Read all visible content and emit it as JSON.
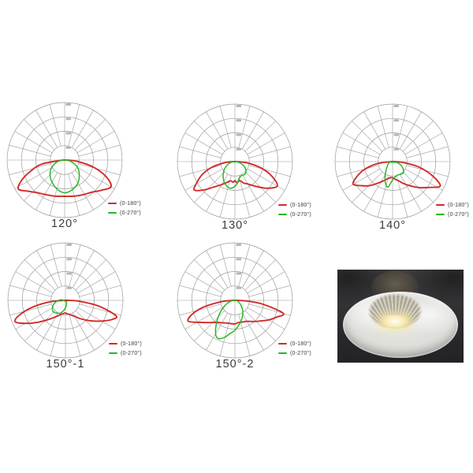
{
  "style": {
    "background": "#ffffff",
    "grid_color": "#9b9b9b",
    "tick_smudge_color": "#aeaeae",
    "title_color": "#3c3c3c",
    "red": "#d22b2b",
    "green": "#27b827"
  },
  "notes": {
    "radial_tick_labels": "tiny illegible numeric smudges beside the vertical axis at each ring"
  },
  "chart_data": [
    {
      "type": "line",
      "subtype": "polar-photometric",
      "title": "120°",
      "legend_position": "bottom-right",
      "rings": [
        0.25,
        0.5,
        0.75,
        1.0
      ],
      "spoke_step_deg": 15,
      "angle_convention": "degrees from nadir (straight down); negative = left",
      "series": [
        {
          "name": "(0-180°)",
          "color": "#d22b2b",
          "points": [
            [
              -90,
              0.03
            ],
            [
              -80,
              0.4
            ],
            [
              -72,
              0.62
            ],
            [
              -65,
              0.82
            ],
            [
              -58,
              0.95
            ],
            [
              -50,
              0.84
            ],
            [
              -40,
              0.74
            ],
            [
              -30,
              0.69
            ],
            [
              -20,
              0.66
            ],
            [
              -10,
              0.64
            ],
            [
              0,
              0.63
            ],
            [
              10,
              0.64
            ],
            [
              20,
              0.66
            ],
            [
              30,
              0.69
            ],
            [
              40,
              0.73
            ],
            [
              50,
              0.82
            ],
            [
              60,
              0.93
            ],
            [
              68,
              0.78
            ],
            [
              76,
              0.52
            ],
            [
              84,
              0.22
            ],
            [
              90,
              0.03
            ]
          ]
        },
        {
          "name": "(0-270°)",
          "color": "#27b827",
          "points": [
            [
              -90,
              0.04
            ],
            [
              -75,
              0.14
            ],
            [
              -60,
              0.26
            ],
            [
              -45,
              0.36
            ],
            [
              -30,
              0.44
            ],
            [
              -15,
              0.52
            ],
            [
              0,
              0.57
            ],
            [
              15,
              0.53
            ],
            [
              30,
              0.46
            ],
            [
              45,
              0.36
            ],
            [
              60,
              0.26
            ],
            [
              75,
              0.13
            ],
            [
              88,
              0.04
            ]
          ]
        }
      ]
    },
    {
      "type": "line",
      "subtype": "polar-photometric",
      "title": "130°",
      "legend_position": "bottom-right",
      "rings": [
        0.25,
        0.5,
        0.75,
        1.0
      ],
      "spoke_step_deg": 15,
      "angle_convention": "degrees from nadir (straight down); negative = left",
      "series": [
        {
          "name": "(0-180°)",
          "color": "#d22b2b",
          "points": [
            [
              -90,
              0.03
            ],
            [
              -84,
              0.18
            ],
            [
              -76,
              0.42
            ],
            [
              -68,
              0.62
            ],
            [
              -60,
              0.78
            ],
            [
              -55,
              0.86
            ],
            [
              -48,
              0.74
            ],
            [
              -40,
              0.58
            ],
            [
              -30,
              0.46
            ],
            [
              -20,
              0.38
            ],
            [
              -12,
              0.34
            ],
            [
              -5,
              0.36
            ],
            [
              0,
              0.33
            ],
            [
              6,
              0.37
            ],
            [
              14,
              0.34
            ],
            [
              22,
              0.4
            ],
            [
              30,
              0.45
            ],
            [
              40,
              0.56
            ],
            [
              50,
              0.72
            ],
            [
              60,
              0.85
            ],
            [
              68,
              0.7
            ],
            [
              76,
              0.48
            ],
            [
              84,
              0.22
            ],
            [
              90,
              0.03
            ]
          ]
        },
        {
          "name": "(0-270°)",
          "color": "#27b827",
          "points": [
            [
              -85,
              0.05
            ],
            [
              -70,
              0.12
            ],
            [
              -55,
              0.22
            ],
            [
              -40,
              0.32
            ],
            [
              -28,
              0.4
            ],
            [
              -18,
              0.45
            ],
            [
              -10,
              0.47
            ],
            [
              -2,
              0.44
            ],
            [
              6,
              0.38
            ],
            [
              14,
              0.3
            ],
            [
              24,
              0.27
            ],
            [
              36,
              0.28
            ],
            [
              48,
              0.26
            ],
            [
              60,
              0.2
            ],
            [
              72,
              0.12
            ],
            [
              84,
              0.05
            ]
          ]
        }
      ]
    },
    {
      "type": "line",
      "subtype": "polar-photometric",
      "title": "140°",
      "legend_position": "bottom-right",
      "rings": [
        0.25,
        0.5,
        0.75,
        1.0
      ],
      "spoke_step_deg": 15,
      "angle_convention": "degrees from nadir (straight down); negative = left",
      "series": [
        {
          "name": "(0-180°)",
          "color": "#d22b2b",
          "points": [
            [
              -90,
              0.03
            ],
            [
              -82,
              0.28
            ],
            [
              -74,
              0.52
            ],
            [
              -66,
              0.7
            ],
            [
              -60,
              0.79
            ],
            [
              -52,
              0.68
            ],
            [
              -44,
              0.58
            ],
            [
              -34,
              0.45
            ],
            [
              -24,
              0.36
            ],
            [
              -14,
              0.3
            ],
            [
              -6,
              0.28
            ],
            [
              0,
              0.28
            ],
            [
              8,
              0.31
            ],
            [
              16,
              0.34
            ],
            [
              26,
              0.42
            ],
            [
              36,
              0.52
            ],
            [
              46,
              0.65
            ],
            [
              56,
              0.8
            ],
            [
              63,
              0.93
            ],
            [
              70,
              0.75
            ],
            [
              78,
              0.48
            ],
            [
              85,
              0.2
            ],
            [
              90,
              0.03
            ]
          ]
        },
        {
          "name": "(0-270°)",
          "color": "#27b827",
          "points": [
            [
              -80,
              0.05
            ],
            [
              -65,
              0.08
            ],
            [
              -50,
              0.12
            ],
            [
              -38,
              0.18
            ],
            [
              -26,
              0.3
            ],
            [
              -16,
              0.42
            ],
            [
              -10,
              0.45
            ],
            [
              -4,
              0.36
            ],
            [
              2,
              0.3
            ],
            [
              10,
              0.27
            ],
            [
              20,
              0.25
            ],
            [
              32,
              0.26
            ],
            [
              44,
              0.27
            ],
            [
              56,
              0.22
            ],
            [
              68,
              0.15
            ],
            [
              80,
              0.07
            ]
          ]
        }
      ]
    },
    {
      "type": "line",
      "subtype": "polar-photometric",
      "title": "150°-1",
      "legend_position": "bottom-right",
      "rings": [
        0.25,
        0.5,
        0.75,
        1.0
      ],
      "spoke_step_deg": 15,
      "angle_convention": "degrees from nadir (straight down); negative = left",
      "series": [
        {
          "name": "(0-180°)",
          "color": "#d22b2b",
          "points": [
            [
              -90,
              0.04
            ],
            [
              -84,
              0.3
            ],
            [
              -78,
              0.6
            ],
            [
              -72,
              0.85
            ],
            [
              -67,
              0.95
            ],
            [
              -60,
              0.8
            ],
            [
              -52,
              0.62
            ],
            [
              -44,
              0.48
            ],
            [
              -36,
              0.38
            ],
            [
              -26,
              0.3
            ],
            [
              -16,
              0.25
            ],
            [
              -8,
              0.23
            ],
            [
              0,
              0.22
            ],
            [
              10,
              0.24
            ],
            [
              20,
              0.27
            ],
            [
              30,
              0.32
            ],
            [
              40,
              0.42
            ],
            [
              50,
              0.55
            ],
            [
              60,
              0.72
            ],
            [
              68,
              0.88
            ],
            [
              73,
              0.92
            ],
            [
              80,
              0.6
            ],
            [
              86,
              0.25
            ],
            [
              90,
              0.04
            ]
          ]
        },
        {
          "name": "(0-270°)",
          "color": "#27b827",
          "points": [
            [
              -100,
              0.07
            ],
            [
              -88,
              0.13
            ],
            [
              -75,
              0.2
            ],
            [
              -60,
              0.26
            ],
            [
              -48,
              0.29
            ],
            [
              -35,
              0.27
            ],
            [
              -22,
              0.24
            ],
            [
              -10,
              0.18
            ],
            [
              0,
              0.13
            ],
            [
              12,
              0.08
            ],
            [
              25,
              0.05
            ],
            [
              40,
              0.03
            ]
          ]
        }
      ]
    },
    {
      "type": "line",
      "subtype": "polar-photometric",
      "title": "150°-2",
      "legend_position": "bottom-right",
      "rings": [
        0.25,
        0.5,
        0.75,
        1.0
      ],
      "spoke_step_deg": 15,
      "angle_convention": "degrees from nadir (straight down); negative = left",
      "series": [
        {
          "name": "(0-180°)",
          "color": "#d22b2b",
          "points": [
            [
              -90,
              0.03
            ],
            [
              -84,
              0.25
            ],
            [
              -78,
              0.55
            ],
            [
              -72,
              0.78
            ],
            [
              -66,
              0.89
            ],
            [
              -58,
              0.72
            ],
            [
              -50,
              0.6
            ],
            [
              -40,
              0.5
            ],
            [
              -30,
              0.45
            ],
            [
              -20,
              0.42
            ],
            [
              -10,
              0.41
            ],
            [
              0,
              0.41
            ],
            [
              10,
              0.39
            ],
            [
              20,
              0.4
            ],
            [
              30,
              0.42
            ],
            [
              40,
              0.48
            ],
            [
              50,
              0.56
            ],
            [
              60,
              0.68
            ],
            [
              68,
              0.78
            ],
            [
              75,
              0.87
            ],
            [
              82,
              0.5
            ],
            [
              87,
              0.2
            ],
            [
              90,
              0.03
            ]
          ]
        },
        {
          "name": "(0-270°)",
          "color": "#27b827",
          "points": [
            [
              -85,
              0.05
            ],
            [
              -72,
              0.12
            ],
            [
              -60,
              0.22
            ],
            [
              -50,
              0.34
            ],
            [
              -42,
              0.46
            ],
            [
              -34,
              0.6
            ],
            [
              -28,
              0.7
            ],
            [
              -22,
              0.72
            ],
            [
              -15,
              0.66
            ],
            [
              -8,
              0.58
            ],
            [
              0,
              0.52
            ],
            [
              8,
              0.44
            ],
            [
              16,
              0.38
            ],
            [
              26,
              0.3
            ],
            [
              38,
              0.22
            ],
            [
              52,
              0.13
            ],
            [
              66,
              0.07
            ],
            [
              80,
              0.03
            ]
          ]
        }
      ]
    }
  ],
  "photo": {
    "description": "LED lens product photo on dark housing",
    "bg_color": "#2c2b2e",
    "led_glow_color": "#f8ecb8"
  }
}
